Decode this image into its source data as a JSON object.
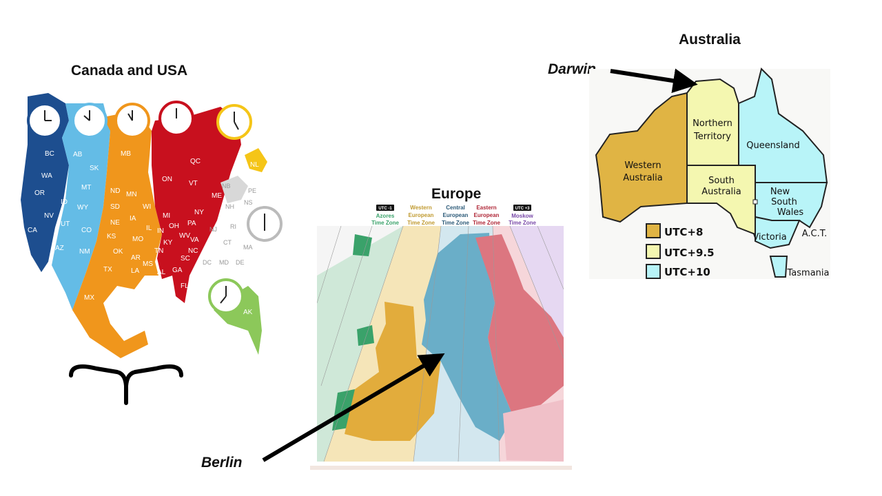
{
  "titles": {
    "north_america": "Canada and USA",
    "europe": "Europe",
    "australia": "Australia"
  },
  "callouts": {
    "darwin": "Darwin",
    "berlin": "Berlin"
  },
  "colors": {
    "pacific_dark": "#1d4e8f",
    "mountain": "#64bce6",
    "central": "#f0961c",
    "eastern": "#c8101e",
    "atlantic": "#f5c518",
    "alaska": "#8cc85a",
    "grey": "#d8d8d8",
    "wa_gold": "#e0b444",
    "nt_yellow": "#f4f7b0",
    "qld_cyan": "#b8f4f8",
    "eu_green": "#3aa26a",
    "eu_gold": "#e2ac3c",
    "eu_blue": "#6aaec8",
    "eu_red": "#dc7680",
    "eu_purple": "#c8a8e4"
  },
  "na_map": {
    "states_pacific": [
      "BC",
      "WA",
      "OR",
      "CA",
      "NV"
    ],
    "states_mountain": [
      "AB",
      "SK",
      "MT",
      "ID",
      "WY",
      "UT",
      "CO",
      "AZ",
      "NM"
    ],
    "states_central": [
      "MB",
      "ND",
      "SD",
      "NE",
      "KS",
      "OK",
      "TX",
      "MN",
      "IA",
      "MO",
      "AR",
      "LA",
      "WI",
      "IL",
      "MS",
      "TN",
      "AL",
      "MX"
    ],
    "states_eastern": [
      "ON",
      "QC",
      "MI",
      "IN",
      "OH",
      "KY",
      "PA",
      "NY",
      "VT",
      "ME",
      "WV",
      "VA",
      "NC",
      "SC",
      "GA",
      "FL"
    ],
    "states_atlantic": [
      "NL"
    ],
    "states_northeast": [
      "NB",
      "PE",
      "NS",
      "NH",
      "NJ",
      "RI",
      "CT",
      "MA",
      "DC",
      "MD",
      "DE"
    ],
    "states_alaska": [
      "AK"
    ],
    "clock_icons": [
      "clock-icon",
      "clock-icon",
      "clock-icon",
      "clock-icon",
      "clock-icon",
      "clock-icon",
      "clock-icon"
    ]
  },
  "europe_map": {
    "zones": [
      {
        "badge": "UTC -1",
        "line1": "Azores",
        "line2": "Time Zone",
        "color": "#3aa26a"
      },
      {
        "badge": "",
        "line1": "Western",
        "line2": "European",
        "line3": "Time Zone",
        "color": "#c09a30"
      },
      {
        "badge": "",
        "line1": "Central",
        "line2": "European",
        "line3": "Time Zone",
        "color": "#2c5a78"
      },
      {
        "badge": "",
        "line1": "Eastern",
        "line2": "European",
        "line3": "Time Zone",
        "color": "#b02838"
      },
      {
        "badge": "UTC +3",
        "line1": "Moskow",
        "line2": "Time Zone",
        "color": "#7848a8"
      }
    ]
  },
  "australia_map": {
    "states": {
      "wa": [
        "Western",
        "Australia"
      ],
      "nt": [
        "Northern",
        "Territory"
      ],
      "sa": [
        "South",
        "Australia"
      ],
      "qld": "Queensland",
      "nsw": [
        "New",
        "South",
        "Wales"
      ],
      "vic": "Victoria",
      "act": "A.C.T.",
      "tas": "Tasmania"
    },
    "legend": [
      {
        "label": "UTC+8",
        "color": "#e0b444"
      },
      {
        "label": "UTC+9.5",
        "color": "#f4f7b0"
      },
      {
        "label": "UTC+10",
        "color": "#b8f4f8"
      }
    ]
  }
}
